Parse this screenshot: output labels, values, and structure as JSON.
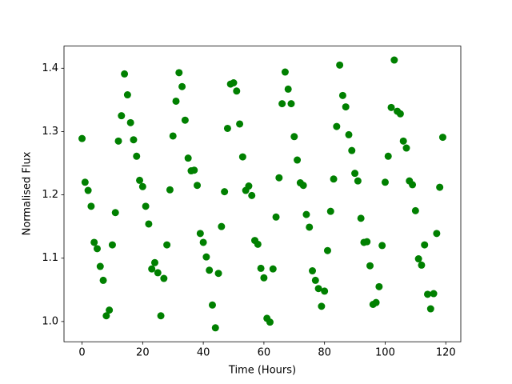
{
  "chart_data": {
    "type": "scatter",
    "xlabel": "Time (Hours)",
    "ylabel": "Normalised Flux",
    "x": [
      0,
      1,
      2,
      3,
      4,
      5,
      6,
      7,
      8,
      9,
      10,
      11,
      12,
      13,
      14,
      15,
      16,
      17,
      18,
      19,
      20,
      21,
      22,
      23,
      24,
      25,
      26,
      27,
      28,
      29,
      30,
      31,
      32,
      33,
      34,
      35,
      36,
      37,
      38,
      39,
      40,
      41,
      42,
      43,
      44,
      45,
      46,
      47,
      48,
      49,
      50,
      51,
      52,
      53,
      54,
      55,
      56,
      57,
      58,
      59,
      60,
      61,
      62,
      63,
      64,
      65,
      66,
      67,
      68,
      69,
      70,
      71,
      72,
      73,
      74,
      75,
      76,
      77,
      78,
      79,
      80,
      81,
      82,
      83,
      84,
      85,
      86,
      87,
      88,
      89,
      90,
      91,
      92,
      93,
      94,
      95,
      96,
      97,
      98,
      99,
      100,
      101,
      102,
      103,
      104,
      105,
      106,
      107,
      108,
      109,
      110,
      111,
      112,
      113,
      114,
      115,
      116,
      117,
      118,
      119
    ],
    "series": [
      {
        "color": "#008000",
        "values": [
          1.289,
          1.22,
          1.207,
          1.182,
          1.125,
          1.115,
          1.087,
          1.065,
          1.009,
          1.018,
          1.121,
          1.172,
          1.285,
          1.325,
          1.391,
          1.358,
          1.314,
          1.287,
          1.261,
          1.223,
          1.213,
          1.182,
          1.154,
          1.083,
          1.093,
          1.077,
          1.009,
          1.068,
          1.121,
          1.208,
          1.293,
          1.348,
          1.393,
          1.371,
          1.318,
          1.258,
          1.238,
          1.239,
          1.215,
          1.139,
          1.125,
          1.102,
          1.081,
          1.026,
          0.99,
          1.076,
          1.15,
          1.205,
          1.305,
          1.375,
          1.377,
          1.364,
          1.312,
          1.26,
          1.207,
          1.214,
          1.199,
          1.128,
          1.122,
          1.084,
          1.069,
          1.005,
          0.999,
          1.083,
          1.165,
          1.227,
          1.344,
          1.394,
          1.367,
          1.344,
          1.292,
          1.255,
          1.219,
          1.215,
          1.169,
          1.149,
          1.08,
          1.065,
          1.052,
          1.024,
          1.048,
          1.112,
          1.174,
          1.225,
          1.308,
          1.405,
          1.357,
          1.339,
          1.295,
          1.27,
          1.234,
          1.222,
          1.163,
          1.125,
          1.126,
          1.088,
          1.027,
          1.03,
          1.055,
          1.12,
          1.22,
          1.261,
          1.338,
          1.413,
          1.332,
          1.328,
          1.285,
          1.274,
          1.222,
          1.216,
          1.175,
          1.099,
          1.089,
          1.121,
          1.043,
          1.02,
          1.044,
          1.139,
          1.212,
          1.291
        ]
      }
    ],
    "xlim": [
      -5.95,
      124.95
    ],
    "xticks": [
      0,
      20,
      40,
      60,
      80,
      100,
      120
    ],
    "ylim": [
      0.968,
      1.435
    ],
    "yticks": [
      {
        "value": 1.0,
        "label": "1.0"
      },
      {
        "value": 1.1,
        "label": "1.1"
      },
      {
        "value": 1.2,
        "label": "1.2"
      },
      {
        "value": 1.3,
        "label": "1.3"
      },
      {
        "value": 1.4,
        "label": "1.4"
      }
    ]
  }
}
